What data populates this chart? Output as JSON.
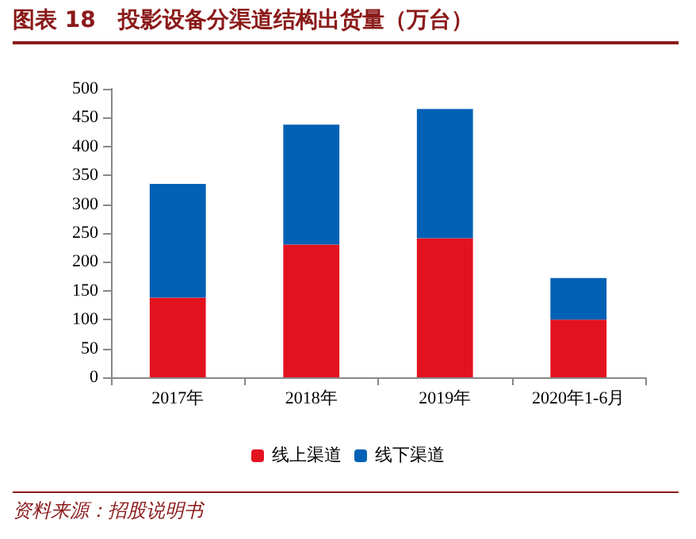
{
  "chart_data": {
    "type": "bar",
    "title": "图表 18　投影设备分渠道结构出货量（万台）",
    "categories": [
      "2017年",
      "2018年",
      "2019年",
      "2020年1-6月"
    ],
    "series": [
      {
        "name": "线上渠道",
        "color": "#e3121f",
        "values": [
          138,
          230,
          241,
          100
        ]
      },
      {
        "name": "线下渠道",
        "color": "#0061b5",
        "values": [
          197,
          208,
          224,
          72
        ]
      }
    ],
    "stacked": true,
    "ylim": [
      0,
      500
    ],
    "yticks": [
      0,
      50,
      100,
      150,
      200,
      250,
      300,
      350,
      400,
      450,
      500
    ],
    "grid": false,
    "legend": "bottom",
    "annotations": [
      "资料来源：招股说明书"
    ]
  }
}
